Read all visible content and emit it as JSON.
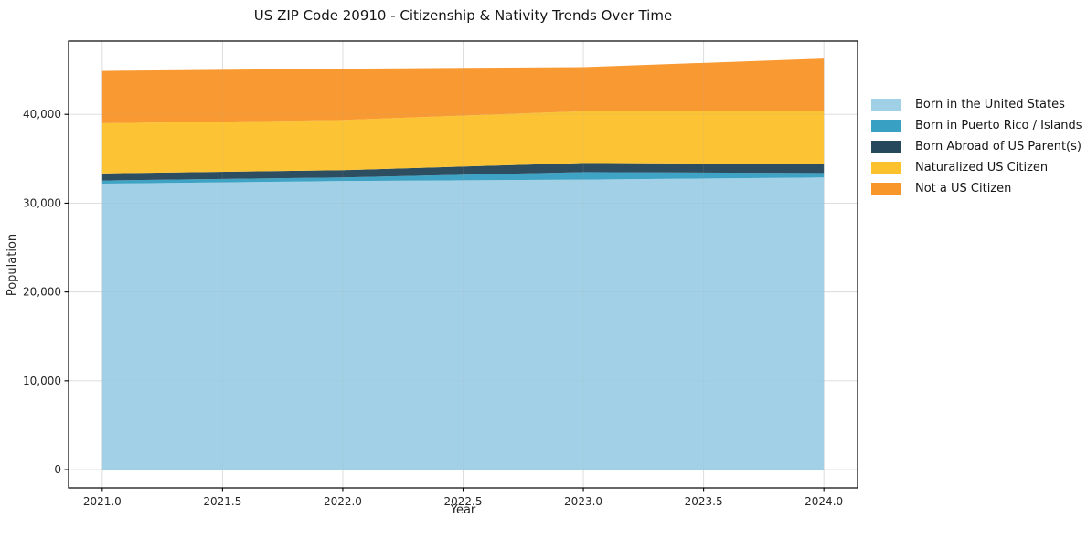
{
  "chart_data": {
    "type": "area",
    "stacked": true,
    "title": "US ZIP Code 20910 - Citizenship & Nativity Trends Over Time",
    "xlabel": "Year",
    "ylabel": "Population",
    "x": [
      2021,
      2022,
      2023,
      2024
    ],
    "series": [
      {
        "name": "Born in the United States",
        "color": "#9fd0e6",
        "values": [
          32200,
          32500,
          32650,
          32900
        ]
      },
      {
        "name": "Born in Puerto Rico / Islands",
        "color": "#38a0c2",
        "values": [
          350,
          400,
          850,
          500
        ]
      },
      {
        "name": "Born Abroad of US Parent(s)",
        "color": "#26485c",
        "values": [
          800,
          820,
          1030,
          1000
        ]
      },
      {
        "name": "Naturalized US Citizen",
        "color": "#fcc22e",
        "values": [
          5650,
          5650,
          5820,
          6020
        ]
      },
      {
        "name": "Not a US Citizen",
        "color": "#f8962a",
        "values": [
          5900,
          5780,
          4970,
          5860
        ]
      }
    ],
    "xticks": {
      "values": [
        2021.0,
        2021.5,
        2022.0,
        2022.5,
        2023.0,
        2023.5,
        2024.0
      ],
      "labels": [
        "2021.0",
        "2021.5",
        "2022.0",
        "2022.5",
        "2023.0",
        "2023.5",
        "2024.0"
      ]
    },
    "yticks": {
      "values": [
        0,
        10000,
        20000,
        30000,
        40000
      ],
      "labels": [
        "0",
        "10,000",
        "20,000",
        "30,000",
        "40,000"
      ]
    },
    "xlim": [
      2020.86,
      2024.14
    ],
    "ylim": [
      -2050,
      48250
    ],
    "grid": true,
    "legend_position": "right-outside",
    "colors": {
      "spine": "#000000",
      "tick_text": "#262626",
      "grid": "#d8d8d8"
    }
  }
}
